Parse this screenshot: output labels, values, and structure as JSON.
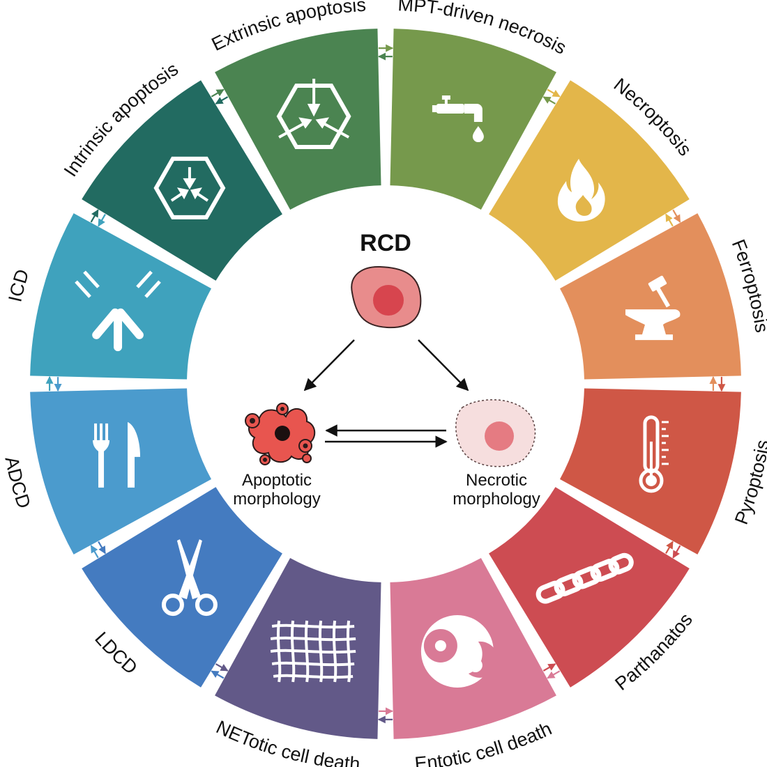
{
  "center": {
    "title": "RCD",
    "apoptotic_line1": "Apoptotic",
    "apoptotic_line2": "morphology",
    "necrotic_line1": "Necrotic",
    "necrotic_line2": "morphology"
  },
  "segments": [
    {
      "label": "MPT-driven necrosis",
      "color": "#76994c",
      "icon": "faucet-icon"
    },
    {
      "label": "Necroptosis",
      "color": "#e3b64a",
      "icon": "flame-icon"
    },
    {
      "label": "Ferroptosis",
      "color": "#e38f5c",
      "icon": "anvil-hammer-icon"
    },
    {
      "label": "Pyroptosis",
      "color": "#cf5746",
      "icon": "thermometer-icon"
    },
    {
      "label": "Parthanatos",
      "color": "#cd4c52",
      "icon": "chain-icon"
    },
    {
      "label": "Entotic cell death",
      "color": "#d97a96",
      "icon": "engulfed-cell-icon"
    },
    {
      "label": "NETotic cell death",
      "color": "#625988",
      "icon": "net-icon"
    },
    {
      "label": "LDCD",
      "color": "#447bc0",
      "icon": "scissors-icon"
    },
    {
      "label": "ADCD",
      "color": "#4b9bcd",
      "icon": "fork-knife-icon"
    },
    {
      "label": "ICD",
      "color": "#3fa2bd",
      "icon": "antibody-icon"
    },
    {
      "label": "Intrinsic apoptosis",
      "color": "#226b61",
      "icon": "hexagon-inward-arrows-icon"
    },
    {
      "label": "Extrinsic apoptosis",
      "color": "#4b8451",
      "icon": "hexagon-crossing-arrows-icon"
    }
  ]
}
